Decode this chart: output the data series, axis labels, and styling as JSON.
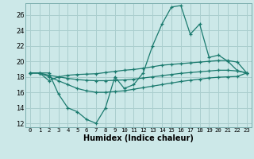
{
  "x": [
    0,
    1,
    2,
    3,
    4,
    5,
    6,
    7,
    8,
    9,
    10,
    11,
    12,
    13,
    14,
    15,
    16,
    17,
    18,
    19,
    20,
    21,
    22,
    23
  ],
  "line1": [
    18.5,
    18.5,
    18.5,
    15.8,
    14.0,
    13.5,
    12.5,
    12.0,
    14.0,
    18.0,
    16.5,
    17.0,
    18.5,
    22.0,
    24.8,
    27.0,
    27.2,
    23.5,
    24.8,
    20.5,
    20.8,
    20.0,
    18.8,
    18.5
  ],
  "line2": [
    18.5,
    18.5,
    17.5,
    18.0,
    18.2,
    18.3,
    18.35,
    18.4,
    18.55,
    18.7,
    18.85,
    18.95,
    19.1,
    19.3,
    19.5,
    19.6,
    19.7,
    19.8,
    19.9,
    20.0,
    20.1,
    20.1,
    19.9,
    18.5
  ],
  "line3": [
    18.5,
    18.5,
    18.2,
    18.0,
    17.8,
    17.65,
    17.55,
    17.5,
    17.5,
    17.55,
    17.6,
    17.7,
    17.85,
    18.0,
    18.15,
    18.3,
    18.45,
    18.55,
    18.65,
    18.75,
    18.85,
    18.85,
    18.75,
    18.5
  ],
  "line4": [
    18.5,
    18.5,
    18.0,
    17.5,
    17.0,
    16.5,
    16.2,
    16.0,
    16.0,
    16.1,
    16.2,
    16.4,
    16.6,
    16.8,
    17.0,
    17.2,
    17.4,
    17.55,
    17.7,
    17.85,
    17.95,
    18.0,
    18.05,
    18.5
  ],
  "color": "#1a7a6e",
  "bg_color": "#cce8e8",
  "grid_color": "#aacece",
  "xlabel": "Humidex (Indice chaleur)",
  "ylim": [
    11.5,
    27.5
  ],
  "xlim": [
    -0.5,
    23.5
  ],
  "yticks": [
    12,
    14,
    16,
    18,
    20,
    22,
    24,
    26
  ],
  "xticks": [
    0,
    1,
    2,
    3,
    4,
    5,
    6,
    7,
    8,
    9,
    10,
    11,
    12,
    13,
    14,
    15,
    16,
    17,
    18,
    19,
    20,
    21,
    22,
    23
  ]
}
